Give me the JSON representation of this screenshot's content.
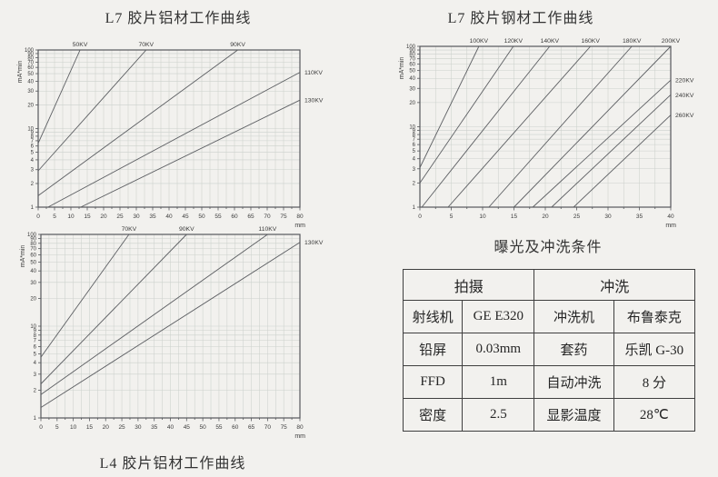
{
  "page": {
    "background": "#f2f1ee",
    "kind": "scanned radiographic exposure chart sheet"
  },
  "colors": {
    "grid": "#ccd1cc",
    "axis_border": "#56585c",
    "curve": "#5c5e62",
    "text": "#3a3a3a",
    "table_border": "#3f3f3f"
  },
  "chart_data": [
    {
      "type": "line",
      "title": "L7 胶片铝材工作曲线",
      "title_position": "above",
      "ylabel": "mA*min",
      "xunit": "mm",
      "y_scale": "log",
      "ylim": [
        1,
        100
      ],
      "xlim": [
        0,
        80
      ],
      "x_tick_step": 5,
      "x_minor_step": 2.5,
      "grid": true,
      "y_tick_labels": [
        100,
        90,
        80,
        70,
        60,
        50,
        40,
        30,
        20,
        10,
        9,
        8,
        7,
        6,
        5,
        4,
        3,
        2,
        1
      ],
      "series": [
        {
          "name": "50KV",
          "label_at": "top",
          "points": [
            [
              0,
              6.5
            ],
            [
              12.8,
              100
            ]
          ]
        },
        {
          "name": "70KV",
          "label_at": "top",
          "points": [
            [
              0,
              2.9
            ],
            [
              33,
              100
            ]
          ]
        },
        {
          "name": "90KV",
          "label_at": "top",
          "points": [
            [
              0,
              1.4
            ],
            [
              61,
              100
            ]
          ]
        },
        {
          "name": "110KV",
          "label_at": "right",
          "points": [
            [
              3,
              1
            ],
            [
              80,
              52
            ]
          ]
        },
        {
          "name": "130KV",
          "label_at": "right",
          "points": [
            [
              13,
              1
            ],
            [
              80,
              23
            ]
          ]
        }
      ]
    },
    {
      "type": "line",
      "title": "L7 胶片钢材工作曲线",
      "title_position": "above",
      "ylabel": "mA*min",
      "xunit": "mm",
      "y_scale": "log",
      "ylim": [
        1,
        100
      ],
      "xlim": [
        0,
        40
      ],
      "x_tick_step": 5,
      "x_minor_step": 2.5,
      "grid": true,
      "y_tick_labels": [
        100,
        90,
        80,
        70,
        60,
        50,
        40,
        30,
        20,
        10,
        9,
        8,
        7,
        6,
        5,
        4,
        3,
        2,
        1
      ],
      "series": [
        {
          "name": "100KV",
          "label_at": "top",
          "points": [
            [
              0,
              3.1
            ],
            [
              9.4,
              100
            ]
          ]
        },
        {
          "name": "120KV",
          "label_at": "top",
          "points": [
            [
              0,
              2.0
            ],
            [
              14.9,
              100
            ]
          ]
        },
        {
          "name": "140KV",
          "label_at": "top",
          "points": [
            [
              0.3,
              1
            ],
            [
              20.7,
              100
            ]
          ]
        },
        {
          "name": "160KV",
          "label_at": "top",
          "points": [
            [
              4.5,
              1
            ],
            [
              27.2,
              100
            ]
          ]
        },
        {
          "name": "180KV",
          "label_at": "top",
          "points": [
            [
              11,
              1
            ],
            [
              33.8,
              100
            ]
          ]
        },
        {
          "name": "200KV",
          "label_at": "top",
          "points": [
            [
              15,
              1
            ],
            [
              40,
              100
            ]
          ]
        },
        {
          "name": "220KV",
          "label_at": "right",
          "points": [
            [
              18,
              1
            ],
            [
              40,
              38
            ]
          ]
        },
        {
          "name": "240KV",
          "label_at": "right",
          "points": [
            [
              21,
              1
            ],
            [
              40,
              25
            ]
          ]
        },
        {
          "name": "260KV",
          "label_at": "right",
          "points": [
            [
              24.5,
              1
            ],
            [
              40,
              14
            ]
          ]
        }
      ]
    },
    {
      "type": "line",
      "title": "L4 胶片铝材工作曲线",
      "title_position": "below",
      "ylabel": "mA*min",
      "xunit": "mm",
      "y_scale": "log",
      "ylim": [
        1,
        100
      ],
      "xlim": [
        0,
        80
      ],
      "x_tick_step": 5,
      "x_minor_step": 2.5,
      "grid": true,
      "y_tick_labels": [
        100,
        90,
        80,
        70,
        60,
        50,
        40,
        30,
        20,
        10,
        9,
        8,
        7,
        6,
        5,
        4,
        3,
        2,
        1
      ],
      "series": [
        {
          "name": "70KV",
          "label_at": "top",
          "points": [
            [
              0,
              4.6
            ],
            [
              27.2,
              100
            ]
          ]
        },
        {
          "name": "90KV",
          "label_at": "top",
          "points": [
            [
              0,
              2.35
            ],
            [
              45,
              100
            ]
          ]
        },
        {
          "name": "110KV",
          "label_at": "top",
          "points": [
            [
              0,
              1.8
            ],
            [
              70,
              100
            ]
          ]
        },
        {
          "name": "130KV",
          "label_at": "right",
          "points": [
            [
              0,
              1.3
            ],
            [
              80,
              82
            ]
          ]
        }
      ]
    }
  ],
  "table": {
    "title": "曝光及冲洗条件",
    "header": [
      "拍摄",
      "冲洗"
    ],
    "rows": [
      [
        "射线机",
        "GE E320",
        "冲洗机",
        "布鲁泰克"
      ],
      [
        "铅屏",
        "0.03mm",
        "套药",
        "乐凯 G-30"
      ],
      [
        "FFD",
        "1m",
        "自动冲洗",
        "8 分"
      ],
      [
        "密度",
        "2.5",
        "显影温度",
        "28℃"
      ]
    ]
  }
}
